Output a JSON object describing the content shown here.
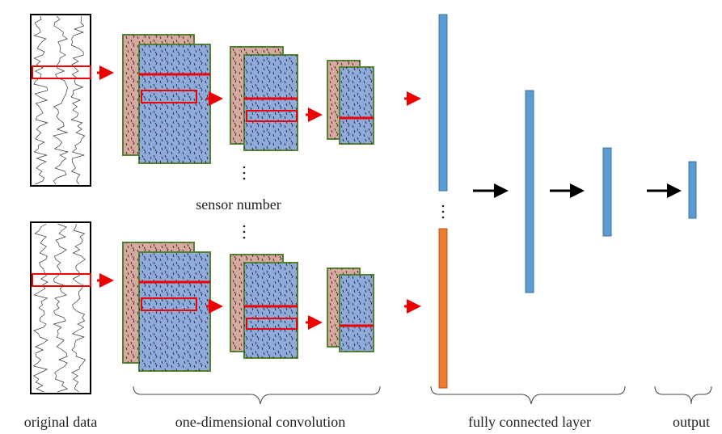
{
  "labels": {
    "original_data": "original data",
    "convolution": "one-dimensional convolution",
    "fully_connected": "fully connected layer",
    "output": "output",
    "sensor_number": "sensor number"
  }
}
